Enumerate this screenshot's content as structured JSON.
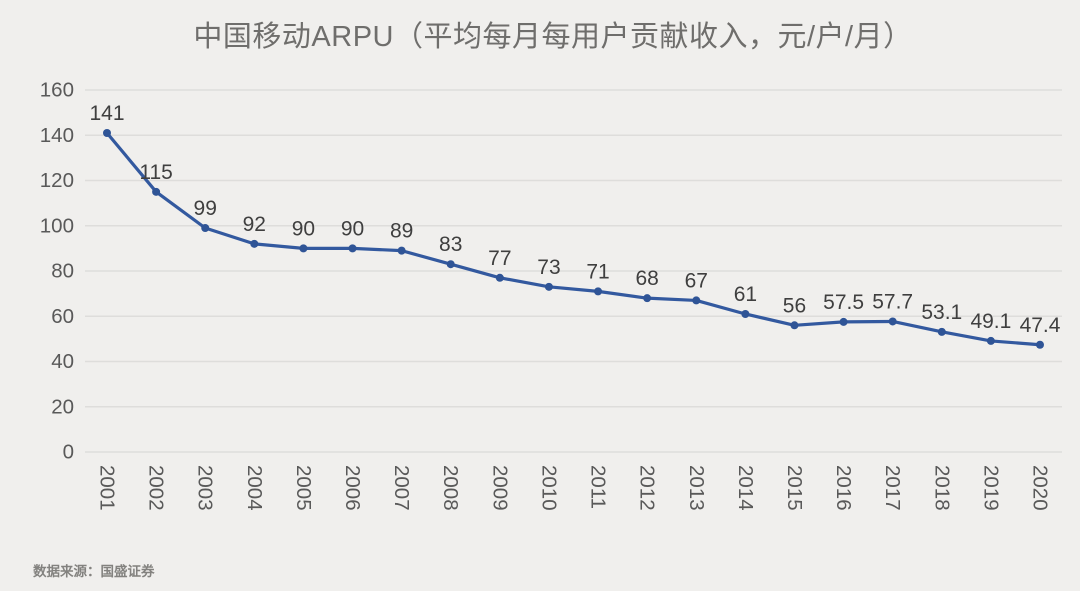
{
  "title": {
    "text": "中国移动ARPU（平均每月每用户贡献收入，元/户/月）"
  },
  "source": {
    "text": "数据来源：国盛证券"
  },
  "chart_data": {
    "type": "line",
    "title": "中国移动ARPU（平均每月每用户贡献收入，元/户/月）",
    "categories": [
      "2001",
      "2002",
      "2003",
      "2004",
      "2005",
      "2006",
      "2007",
      "2008",
      "2009",
      "2010",
      "2011",
      "2012",
      "2013",
      "2014",
      "2015",
      "2016",
      "2017",
      "2018",
      "2019",
      "2020"
    ],
    "values": [
      141,
      115,
      99,
      92,
      90,
      90,
      89,
      83,
      77,
      73,
      71,
      68,
      67,
      61,
      56,
      57.5,
      57.7,
      53.1,
      49.1,
      47.4
    ],
    "data_labels": [
      "141",
      "115",
      "99",
      "92",
      "90",
      "90",
      "89",
      "83",
      "77",
      "73",
      "71",
      "68",
      "67",
      "61",
      "56",
      "57.5",
      "57.7",
      "53.1",
      "49.1",
      "47.4"
    ],
    "xlabel": "",
    "ylabel": "",
    "ylim": [
      0,
      160
    ],
    "yticks": [
      0,
      20,
      40,
      60,
      80,
      100,
      120,
      140,
      160
    ],
    "grid": "horizontal",
    "legend": "none",
    "x_tick_rotation_deg": 90,
    "marker": "circle",
    "colors": {
      "line": "#33599f",
      "marker": "#2f5496",
      "data_label": "#3f3f3f",
      "axis_label": "#595959",
      "gridline": "#dedddb",
      "background": "#f0efed"
    }
  }
}
